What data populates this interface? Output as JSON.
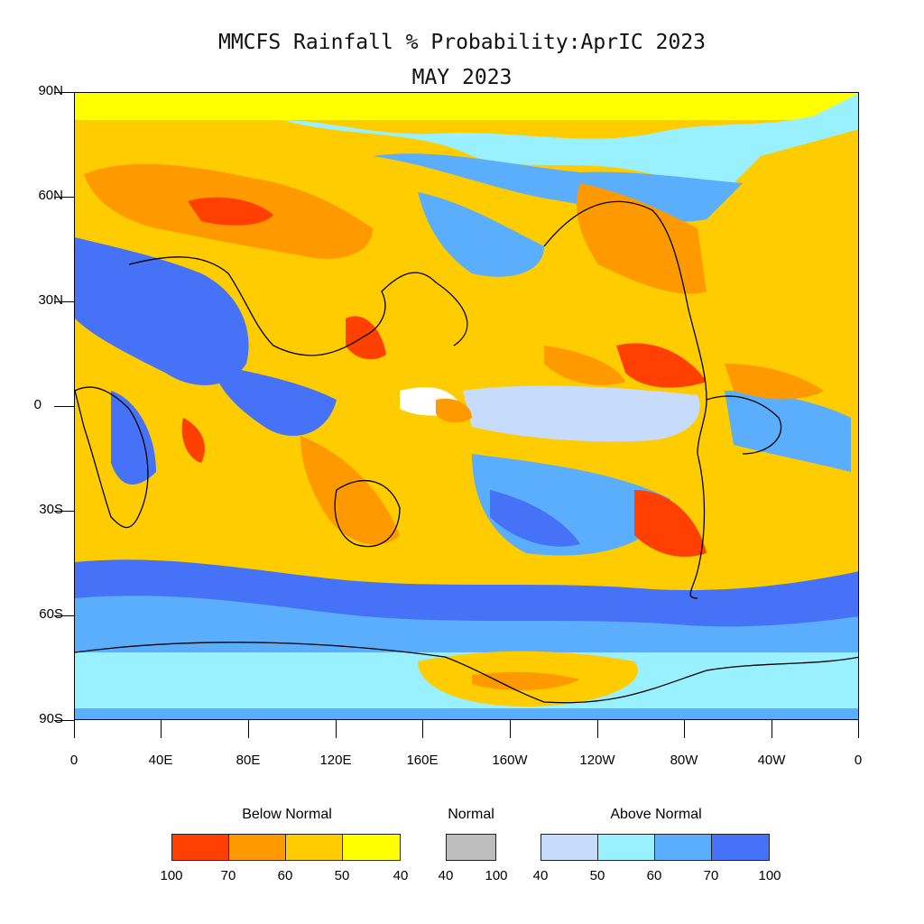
{
  "title": {
    "line1": "MMCFS Rainfall % Probability:AprIC 2023",
    "line2": "MAY 2023"
  },
  "axes": {
    "lat_labels": [
      "90N",
      "60N",
      "30N",
      "0",
      "30S",
      "60S",
      "90S"
    ],
    "lon_labels": [
      "0",
      "40E",
      "80E",
      "120E",
      "160E",
      "160W",
      "120W",
      "80W",
      "40W",
      "0"
    ]
  },
  "legend": {
    "below": {
      "title": "Below Normal",
      "colors": [
        "#ff4000",
        "#ff9900",
        "#ffcc00",
        "#ffff00"
      ],
      "labels": [
        "100",
        "70",
        "60",
        "50",
        "40"
      ]
    },
    "normal": {
      "title": "Normal",
      "color": "#bdbdbd",
      "labels": [
        "40",
        "100"
      ]
    },
    "above": {
      "title": "Above Normal",
      "colors": [
        "#c6dcfa",
        "#99f0ff",
        "#5aaefc",
        "#4572f7"
      ],
      "labels": [
        "40",
        "50",
        "60",
        "70",
        "100"
      ]
    }
  }
}
